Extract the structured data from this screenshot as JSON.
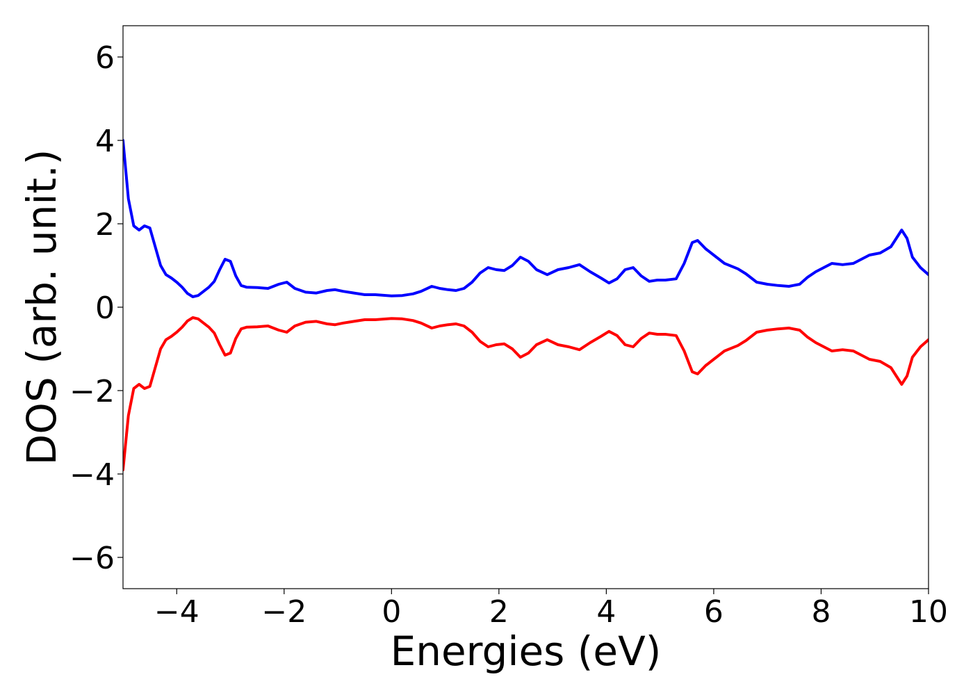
{
  "chart_data": {
    "type": "line",
    "title": "",
    "xlabel": "Energies (eV)",
    "ylabel": "DOS (arb. unit.)",
    "xlim": [
      -5,
      10
    ],
    "ylim": [
      -6.75,
      6.75
    ],
    "grid": false,
    "legend": "none",
    "x_ticks": [
      -4,
      -2,
      0,
      2,
      4,
      6,
      8,
      10
    ],
    "x_tick_labels": [
      "−4",
      "−2",
      "0",
      "2",
      "4",
      "6",
      "8",
      "10"
    ],
    "y_ticks": [
      6,
      4,
      2,
      0,
      -2,
      -4,
      -6
    ],
    "y_tick_labels": [
      "6",
      "4",
      "2",
      "0",
      "−2",
      "−4",
      "−6"
    ],
    "series": [
      {
        "color": "#0000ff",
        "x": [
          -5.0,
          -4.9,
          -4.8,
          -4.7,
          -4.6,
          -4.5,
          -4.4,
          -4.3,
          -4.2,
          -4.1,
          -4.0,
          -3.9,
          -3.8,
          -3.7,
          -3.6,
          -3.5,
          -3.4,
          -3.3,
          -3.2,
          -3.1,
          -3.0,
          -2.9,
          -2.8,
          -2.7,
          -2.5,
          -2.3,
          -2.1,
          -1.95,
          -1.8,
          -1.6,
          -1.4,
          -1.2,
          -1.05,
          -0.9,
          -0.7,
          -0.5,
          -0.3,
          0.0,
          0.2,
          0.4,
          0.55,
          0.75,
          0.9,
          1.05,
          1.2,
          1.35,
          1.5,
          1.65,
          1.8,
          1.95,
          2.1,
          2.25,
          2.4,
          2.55,
          2.7,
          2.9,
          3.1,
          3.3,
          3.5,
          3.7,
          3.9,
          4.05,
          4.2,
          4.35,
          4.5,
          4.65,
          4.8,
          4.95,
          5.1,
          5.3,
          5.45,
          5.6,
          5.7,
          5.85,
          6.0,
          6.2,
          6.45,
          6.6,
          6.8,
          7.0,
          7.2,
          7.4,
          7.6,
          7.75,
          7.9,
          8.05,
          8.2,
          8.4,
          8.6,
          8.75,
          8.9,
          9.1,
          9.3,
          9.4,
          9.5,
          9.6,
          9.7,
          9.85,
          10.0
        ],
        "y": [
          4.0,
          2.6,
          1.95,
          1.85,
          1.95,
          1.9,
          1.45,
          1.0,
          0.78,
          0.7,
          0.6,
          0.48,
          0.33,
          0.25,
          0.28,
          0.38,
          0.48,
          0.62,
          0.9,
          1.15,
          1.1,
          0.75,
          0.52,
          0.48,
          0.47,
          0.45,
          0.55,
          0.6,
          0.45,
          0.36,
          0.34,
          0.4,
          0.42,
          0.38,
          0.34,
          0.3,
          0.3,
          0.27,
          0.28,
          0.32,
          0.38,
          0.5,
          0.45,
          0.42,
          0.4,
          0.45,
          0.6,
          0.82,
          0.95,
          0.9,
          0.88,
          1.0,
          1.2,
          1.1,
          0.9,
          0.78,
          0.9,
          0.95,
          1.02,
          0.85,
          0.7,
          0.58,
          0.68,
          0.9,
          0.95,
          0.75,
          0.62,
          0.65,
          0.65,
          0.68,
          1.05,
          1.55,
          1.6,
          1.4,
          1.25,
          1.05,
          0.92,
          0.8,
          0.6,
          0.55,
          0.52,
          0.5,
          0.55,
          0.72,
          0.85,
          0.95,
          1.05,
          1.02,
          1.05,
          1.15,
          1.25,
          1.3,
          1.45,
          1.65,
          1.85,
          1.65,
          1.2,
          0.95,
          0.78
        ]
      },
      {
        "color": "#ff0000",
        "x": [
          -5.0,
          -4.9,
          -4.8,
          -4.7,
          -4.6,
          -4.5,
          -4.4,
          -4.3,
          -4.2,
          -4.1,
          -4.0,
          -3.9,
          -3.8,
          -3.7,
          -3.6,
          -3.5,
          -3.4,
          -3.3,
          -3.2,
          -3.1,
          -3.0,
          -2.9,
          -2.8,
          -2.7,
          -2.5,
          -2.3,
          -2.1,
          -1.95,
          -1.8,
          -1.6,
          -1.4,
          -1.2,
          -1.05,
          -0.9,
          -0.7,
          -0.5,
          -0.3,
          0.0,
          0.2,
          0.4,
          0.55,
          0.75,
          0.9,
          1.05,
          1.2,
          1.35,
          1.5,
          1.65,
          1.8,
          1.95,
          2.1,
          2.25,
          2.4,
          2.55,
          2.7,
          2.9,
          3.1,
          3.3,
          3.5,
          3.7,
          3.9,
          4.05,
          4.2,
          4.35,
          4.5,
          4.65,
          4.8,
          4.95,
          5.1,
          5.3,
          5.45,
          5.6,
          5.7,
          5.85,
          6.0,
          6.2,
          6.45,
          6.6,
          6.8,
          7.0,
          7.2,
          7.4,
          7.6,
          7.75,
          7.9,
          8.05,
          8.2,
          8.4,
          8.6,
          8.75,
          8.9,
          9.1,
          9.3,
          9.4,
          9.5,
          9.6,
          9.7,
          9.85,
          10.0
        ],
        "y": [
          -3.9,
          -2.6,
          -1.95,
          -1.85,
          -1.95,
          -1.9,
          -1.45,
          -1.0,
          -0.78,
          -0.7,
          -0.6,
          -0.48,
          -0.33,
          -0.25,
          -0.28,
          -0.38,
          -0.48,
          -0.62,
          -0.9,
          -1.15,
          -1.1,
          -0.75,
          -0.52,
          -0.48,
          -0.47,
          -0.45,
          -0.55,
          -0.6,
          -0.45,
          -0.36,
          -0.34,
          -0.4,
          -0.42,
          -0.38,
          -0.34,
          -0.3,
          -0.3,
          -0.27,
          -0.28,
          -0.32,
          -0.38,
          -0.5,
          -0.45,
          -0.42,
          -0.4,
          -0.45,
          -0.6,
          -0.82,
          -0.95,
          -0.9,
          -0.88,
          -1.0,
          -1.2,
          -1.1,
          -0.9,
          -0.78,
          -0.9,
          -0.95,
          -1.02,
          -0.85,
          -0.7,
          -0.58,
          -0.68,
          -0.9,
          -0.95,
          -0.75,
          -0.62,
          -0.65,
          -0.65,
          -0.68,
          -1.05,
          -1.55,
          -1.6,
          -1.4,
          -1.25,
          -1.05,
          -0.92,
          -0.8,
          -0.6,
          -0.55,
          -0.52,
          -0.5,
          -0.55,
          -0.72,
          -0.85,
          -0.95,
          -1.05,
          -1.02,
          -1.05,
          -1.15,
          -1.25,
          -1.3,
          -1.45,
          -1.65,
          -1.85,
          -1.65,
          -1.2,
          -0.95,
          -0.78
        ]
      }
    ]
  }
}
